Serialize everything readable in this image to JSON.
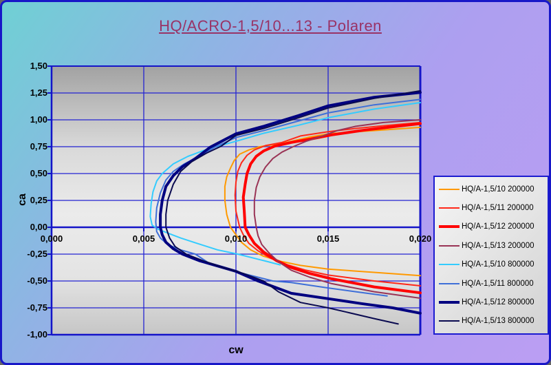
{
  "title": "HQ/ACRO-1,5/10...13 - Polaren",
  "axes": {
    "x_label": "cw",
    "y_label": "ca",
    "x_ticks": [
      {
        "v": 0.0,
        "label": "0,000"
      },
      {
        "v": 0.005,
        "label": "0,005"
      },
      {
        "v": 0.01,
        "label": "0,010"
      },
      {
        "v": 0.015,
        "label": "0,015"
      },
      {
        "v": 0.02,
        "label": "0,020"
      }
    ],
    "y_ticks": [
      {
        "v": 1.5,
        "label": "1,50"
      },
      {
        "v": 1.25,
        "label": "1,25"
      },
      {
        "v": 1.0,
        "label": "1,00"
      },
      {
        "v": 0.75,
        "label": "0,75"
      },
      {
        "v": 0.5,
        "label": "0,50"
      },
      {
        "v": 0.25,
        "label": "0,25"
      },
      {
        "v": 0.0,
        "label": "0,00"
      },
      {
        "v": -0.25,
        "label": "-0,25"
      },
      {
        "v": -0.5,
        "label": "-0,50"
      },
      {
        "v": -0.75,
        "label": "-0,75"
      },
      {
        "v": -1.0,
        "label": "-1,00"
      }
    ]
  },
  "colors": {
    "grid": "#2323d2",
    "axis": "#1414c8",
    "title": "#993366",
    "frame_border": "#1717c8",
    "legend_border": "#1b1bd0"
  },
  "chart_data": {
    "type": "line",
    "title": "HQ/ACRO-1,5/10...13 - Polaren",
    "xlabel": "cw",
    "ylabel": "ca",
    "xlim": [
      0.0,
      0.02
    ],
    "ylim": [
      -1.0,
      1.5
    ],
    "x_major": 0.005,
    "y_major": 0.25,
    "grid": true,
    "legend_position": "right",
    "series": [
      {
        "name": "HQ/A-1,5/10 200000",
        "color": "#FF9900",
        "width": 2,
        "points": [
          [
            0.02,
            -0.45
          ],
          [
            0.0175,
            -0.42
          ],
          [
            0.015,
            -0.39
          ],
          [
            0.0135,
            -0.355
          ],
          [
            0.0125,
            -0.32
          ],
          [
            0.0115,
            -0.27
          ],
          [
            0.0108,
            -0.21
          ],
          [
            0.0103,
            -0.14
          ],
          [
            0.01,
            -0.07
          ],
          [
            0.0097,
            0.0
          ],
          [
            0.0095,
            0.12
          ],
          [
            0.0094,
            0.25
          ],
          [
            0.0094,
            0.38
          ],
          [
            0.0095,
            0.47
          ],
          [
            0.0097,
            0.55
          ],
          [
            0.0099,
            0.62
          ],
          [
            0.0102,
            0.68
          ],
          [
            0.0107,
            0.72
          ],
          [
            0.0113,
            0.75
          ],
          [
            0.0125,
            0.78
          ],
          [
            0.014,
            0.84
          ],
          [
            0.015,
            0.87
          ],
          [
            0.0162,
            0.885
          ],
          [
            0.0175,
            0.9
          ],
          [
            0.02,
            0.93
          ]
        ]
      },
      {
        "name": "HQ/A-1,5/11 200000",
        "color": "#FF2819",
        "width": 2,
        "points": [
          [
            0.02,
            -0.545
          ],
          [
            0.0175,
            -0.5
          ],
          [
            0.015,
            -0.445
          ],
          [
            0.0138,
            -0.4
          ],
          [
            0.0128,
            -0.35
          ],
          [
            0.0119,
            -0.29
          ],
          [
            0.0112,
            -0.22
          ],
          [
            0.0107,
            -0.15
          ],
          [
            0.0104,
            -0.07
          ],
          [
            0.0102,
            0.0
          ],
          [
            0.01,
            0.15
          ],
          [
            0.00995,
            0.3
          ],
          [
            0.01,
            0.42
          ],
          [
            0.0101,
            0.52
          ],
          [
            0.0103,
            0.6
          ],
          [
            0.0106,
            0.67
          ],
          [
            0.011,
            0.72
          ],
          [
            0.0116,
            0.76
          ],
          [
            0.0125,
            0.79
          ],
          [
            0.0135,
            0.85
          ],
          [
            0.015,
            0.89
          ],
          [
            0.0165,
            0.92
          ],
          [
            0.018,
            0.945
          ],
          [
            0.02,
            0.975
          ]
        ]
      },
      {
        "name": "HQ/A-1,5/12 200000",
        "color": "#FF0000",
        "width": 4,
        "points": [
          [
            0.02,
            -0.61
          ],
          [
            0.0175,
            -0.555
          ],
          [
            0.0152,
            -0.48
          ],
          [
            0.014,
            -0.43
          ],
          [
            0.013,
            -0.375
          ],
          [
            0.0122,
            -0.31
          ],
          [
            0.0115,
            -0.23
          ],
          [
            0.011,
            -0.15
          ],
          [
            0.0107,
            -0.07
          ],
          [
            0.0105,
            0.0
          ],
          [
            0.01045,
            0.15
          ],
          [
            0.0104,
            0.28
          ],
          [
            0.0105,
            0.4
          ],
          [
            0.0106,
            0.5
          ],
          [
            0.0108,
            0.59
          ],
          [
            0.0111,
            0.66
          ],
          [
            0.0115,
            0.71
          ],
          [
            0.0121,
            0.755
          ],
          [
            0.013,
            0.79
          ],
          [
            0.014,
            0.82
          ],
          [
            0.0152,
            0.86
          ],
          [
            0.017,
            0.905
          ],
          [
            0.0185,
            0.935
          ],
          [
            0.02,
            0.965
          ]
        ]
      },
      {
        "name": "HQ/A-1,5/13 200000",
        "color": "#993355",
        "width": 2,
        "points": [
          [
            0.02,
            -0.66
          ],
          [
            0.0175,
            -0.6
          ],
          [
            0.0152,
            -0.525
          ],
          [
            0.014,
            -0.465
          ],
          [
            0.013,
            -0.4
          ],
          [
            0.0123,
            -0.32
          ],
          [
            0.0118,
            -0.24
          ],
          [
            0.0114,
            -0.16
          ],
          [
            0.0112,
            -0.08
          ],
          [
            0.0111,
            0.0
          ],
          [
            0.011,
            0.12
          ],
          [
            0.011,
            0.25
          ],
          [
            0.0111,
            0.37
          ],
          [
            0.0113,
            0.47
          ],
          [
            0.0116,
            0.56
          ],
          [
            0.012,
            0.64
          ],
          [
            0.0125,
            0.7
          ],
          [
            0.0131,
            0.75
          ],
          [
            0.0138,
            0.8
          ],
          [
            0.0147,
            0.85
          ],
          [
            0.0155,
            0.9
          ],
          [
            0.0165,
            0.94
          ],
          [
            0.018,
            0.975
          ],
          [
            0.02,
            1.0
          ]
        ]
      },
      {
        "name": "HQ/A-1,5/10 800000",
        "color": "#33CCFF",
        "width": 2,
        "points": [
          [
            0.0124,
            -0.35
          ],
          [
            0.0115,
            -0.31
          ],
          [
            0.0101,
            -0.25
          ],
          [
            0.009,
            -0.21
          ],
          [
            0.0079,
            -0.15
          ],
          [
            0.007,
            -0.1
          ],
          [
            0.0064,
            -0.06
          ],
          [
            0.0058,
            -0.02
          ],
          [
            0.00545,
            0.02
          ],
          [
            0.00535,
            0.1
          ],
          [
            0.0054,
            0.22
          ],
          [
            0.0055,
            0.33
          ],
          [
            0.0057,
            0.43
          ],
          [
            0.006,
            0.5
          ],
          [
            0.0066,
            0.59
          ],
          [
            0.0074,
            0.66
          ],
          [
            0.0085,
            0.73
          ],
          [
            0.01,
            0.8
          ],
          [
            0.0115,
            0.875
          ],
          [
            0.0134,
            0.95
          ],
          [
            0.015,
            1.02
          ],
          [
            0.0175,
            1.1
          ],
          [
            0.02,
            1.16
          ]
        ]
      },
      {
        "name": "HQ/A-1,5/11 800000",
        "color": "#3E6FD8",
        "width": 2,
        "points": [
          [
            0.0182,
            -0.64
          ],
          [
            0.0165,
            -0.6
          ],
          [
            0.015,
            -0.565
          ],
          [
            0.013,
            -0.515
          ],
          [
            0.012,
            -0.5
          ],
          [
            0.0105,
            -0.435
          ],
          [
            0.0095,
            -0.385
          ],
          [
            0.0085,
            -0.33
          ],
          [
            0.0078,
            -0.25
          ],
          [
            0.007,
            -0.21
          ],
          [
            0.0063,
            -0.16
          ],
          [
            0.0059,
            -0.1
          ],
          [
            0.0057,
            -0.04
          ],
          [
            0.00565,
            0.05
          ],
          [
            0.0057,
            0.18
          ],
          [
            0.0059,
            0.32
          ],
          [
            0.0062,
            0.44
          ],
          [
            0.0066,
            0.52
          ],
          [
            0.0072,
            0.59
          ],
          [
            0.008,
            0.66
          ],
          [
            0.0089,
            0.75
          ],
          [
            0.01,
            0.835
          ],
          [
            0.0115,
            0.9
          ],
          [
            0.0134,
            0.99
          ],
          [
            0.015,
            1.065
          ],
          [
            0.0175,
            1.14
          ],
          [
            0.02,
            1.19
          ]
        ]
      },
      {
        "name": "HQ/A-1,5/12 800000",
        "color": "#000080",
        "width": 4,
        "points": [
          [
            0.02,
            -0.8
          ],
          [
            0.0185,
            -0.75
          ],
          [
            0.0168,
            -0.71
          ],
          [
            0.015,
            -0.665
          ],
          [
            0.013,
            -0.615
          ],
          [
            0.0112,
            -0.5
          ],
          [
            0.01,
            -0.41
          ],
          [
            0.009,
            -0.36
          ],
          [
            0.008,
            -0.31
          ],
          [
            0.0071,
            -0.25
          ],
          [
            0.0066,
            -0.2
          ],
          [
            0.0062,
            -0.14
          ],
          [
            0.006,
            -0.07
          ],
          [
            0.0059,
            0.0
          ],
          [
            0.0059,
            0.12
          ],
          [
            0.006,
            0.25
          ],
          [
            0.0062,
            0.38
          ],
          [
            0.0066,
            0.48
          ],
          [
            0.0071,
            0.565
          ],
          [
            0.0078,
            0.64
          ],
          [
            0.0086,
            0.745
          ],
          [
            0.01,
            0.87
          ],
          [
            0.0115,
            0.94
          ],
          [
            0.0134,
            1.04
          ],
          [
            0.015,
            1.13
          ],
          [
            0.0175,
            1.21
          ],
          [
            0.02,
            1.255
          ]
        ]
      },
      {
        "name": "HQ/A-1,5/13 800000",
        "color": "#0A0A50",
        "width": 2,
        "points": [
          [
            0.0188,
            -0.9
          ],
          [
            0.0175,
            -0.85
          ],
          [
            0.016,
            -0.79
          ],
          [
            0.015,
            -0.75
          ],
          [
            0.0135,
            -0.7
          ],
          [
            0.0123,
            -0.6
          ],
          [
            0.0115,
            -0.5
          ],
          [
            0.0104,
            -0.43
          ],
          [
            0.0092,
            -0.37
          ],
          [
            0.0082,
            -0.31
          ],
          [
            0.0073,
            -0.25
          ],
          [
            0.0067,
            -0.18
          ],
          [
            0.0064,
            -0.1
          ],
          [
            0.0062,
            0.0
          ],
          [
            0.0062,
            0.12
          ],
          [
            0.0063,
            0.25
          ],
          [
            0.0066,
            0.4
          ],
          [
            0.007,
            0.52
          ],
          [
            0.0076,
            0.61
          ],
          [
            0.0084,
            0.69
          ],
          [
            0.0092,
            0.755
          ],
          [
            0.01,
            0.855
          ],
          [
            0.0115,
            0.92
          ],
          [
            0.0134,
            1.02
          ],
          [
            0.015,
            1.11
          ],
          [
            0.0175,
            1.2
          ],
          [
            0.02,
            1.27
          ]
        ]
      }
    ]
  }
}
